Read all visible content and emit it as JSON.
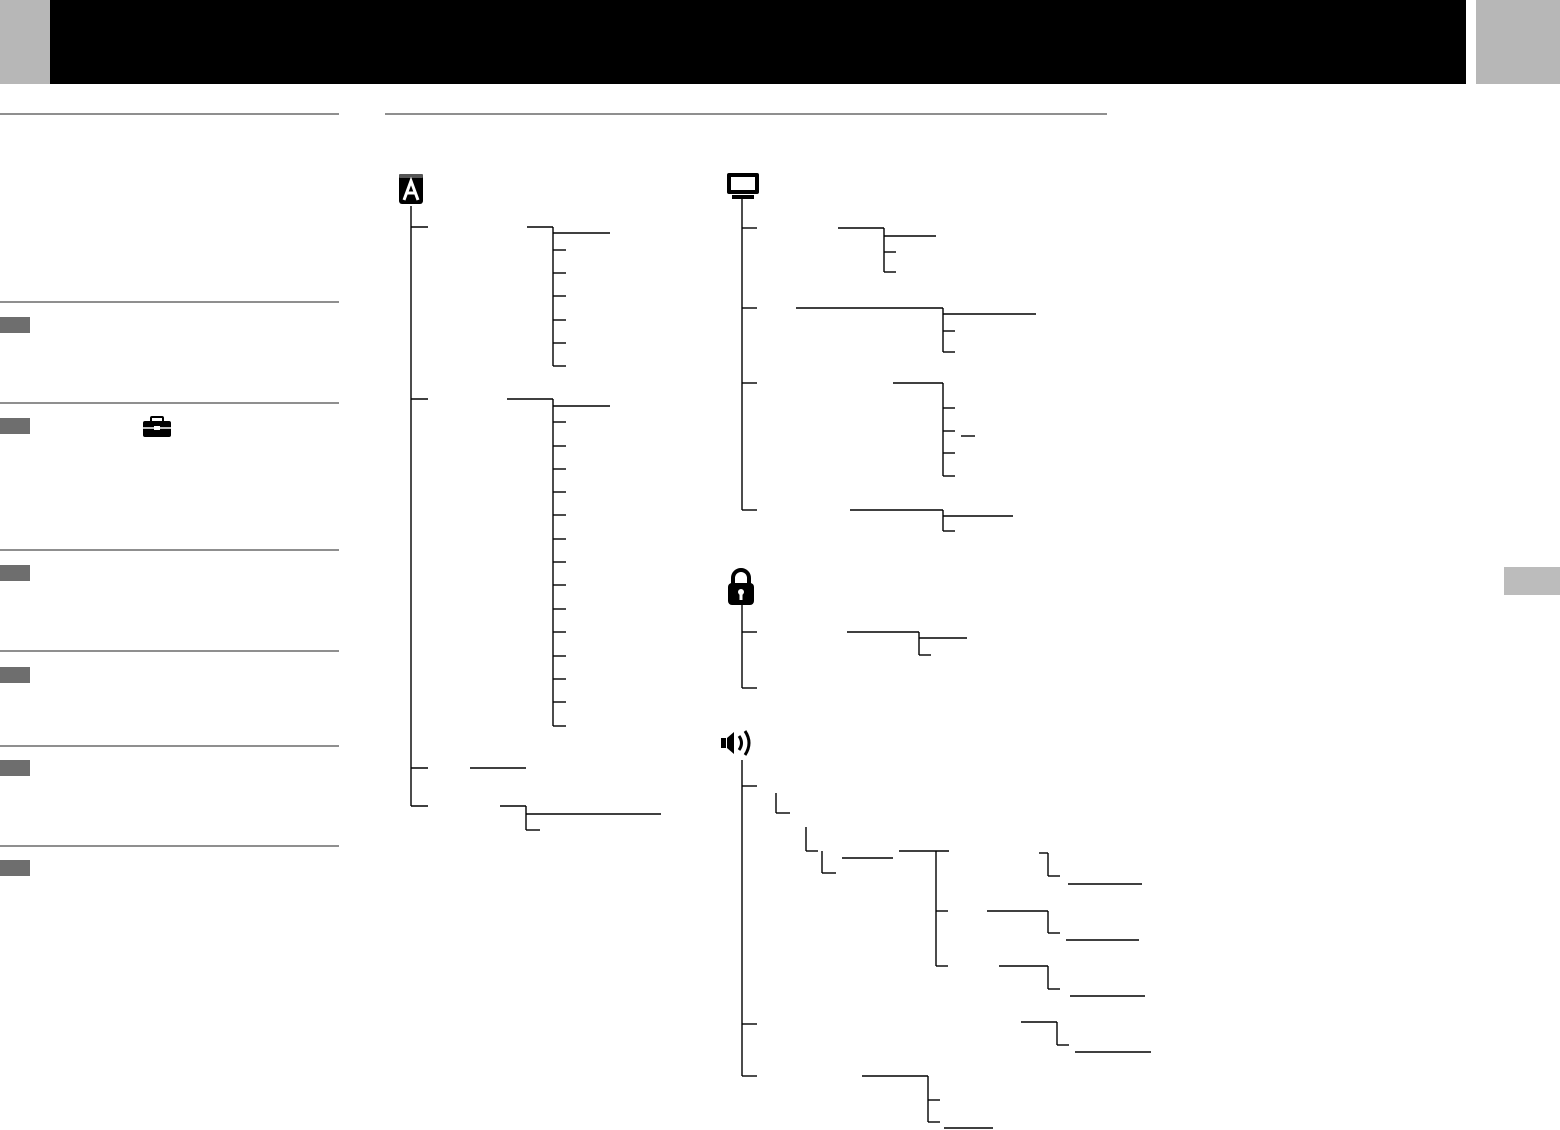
{
  "page": {
    "background": "#ffffff",
    "header_bar_color": "#000000",
    "corner_block_color": "#b7b7b7",
    "rule_color": "#8f8f8f",
    "step_chip_color": "#6e6e6e",
    "side_tab_color": "#bcbcbc"
  },
  "left_column": {
    "steps": [
      {
        "name": "step-1"
      },
      {
        "name": "step-2",
        "icon": "toolbox-icon"
      },
      {
        "name": "step-3"
      },
      {
        "name": "step-4"
      },
      {
        "name": "step-5"
      },
      {
        "name": "step-6"
      }
    ]
  },
  "menu_trees": {
    "icons": [
      "language-a-icon",
      "monitor-icon",
      "padlock-icon",
      "speaker-icon"
    ],
    "line_color": "#000000"
  }
}
